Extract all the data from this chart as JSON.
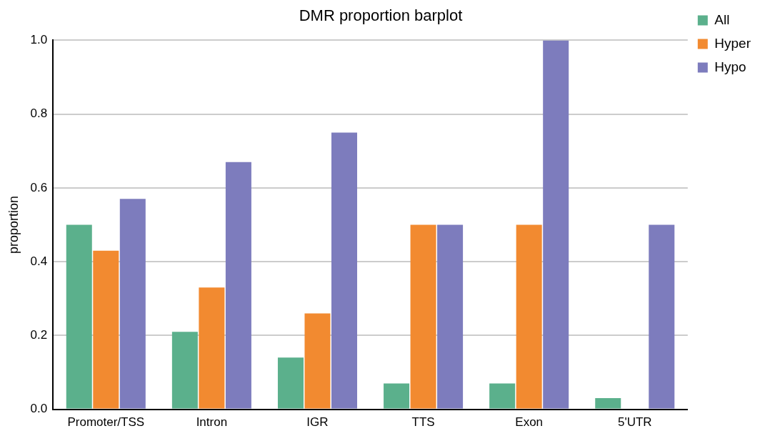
{
  "chart_data": {
    "type": "bar",
    "title": "DMR proportion barplot",
    "ylabel": "proportion",
    "categories": [
      "Promoter/TSS",
      "Intron",
      "IGR",
      "TTS",
      "Exon",
      "5'UTR"
    ],
    "series": [
      {
        "name": "All",
        "color": "#5bb08c",
        "values": [
          0.5,
          0.21,
          0.14,
          0.07,
          0.07,
          0.03
        ]
      },
      {
        "name": "Hyper",
        "color": "#f28a30",
        "values": [
          0.43,
          0.33,
          0.26,
          0.5,
          0.5,
          null
        ]
      },
      {
        "name": "Hypo",
        "color": "#7d7cbd",
        "values": [
          0.57,
          0.67,
          0.75,
          0.5,
          1.0,
          0.5
        ]
      }
    ],
    "ylim": [
      0,
      1.0
    ],
    "yticks": [
      {
        "value": 0,
        "label": "0.0"
      },
      {
        "value": 0.2,
        "label": "0.2"
      },
      {
        "value": 0.4,
        "label": "0.4"
      },
      {
        "value": 0.6,
        "label": "0.6"
      },
      {
        "value": 0.8,
        "label": "0.8"
      },
      {
        "value": 1.0,
        "label": "1.0"
      }
    ],
    "grid": "y",
    "legend": "top right"
  }
}
